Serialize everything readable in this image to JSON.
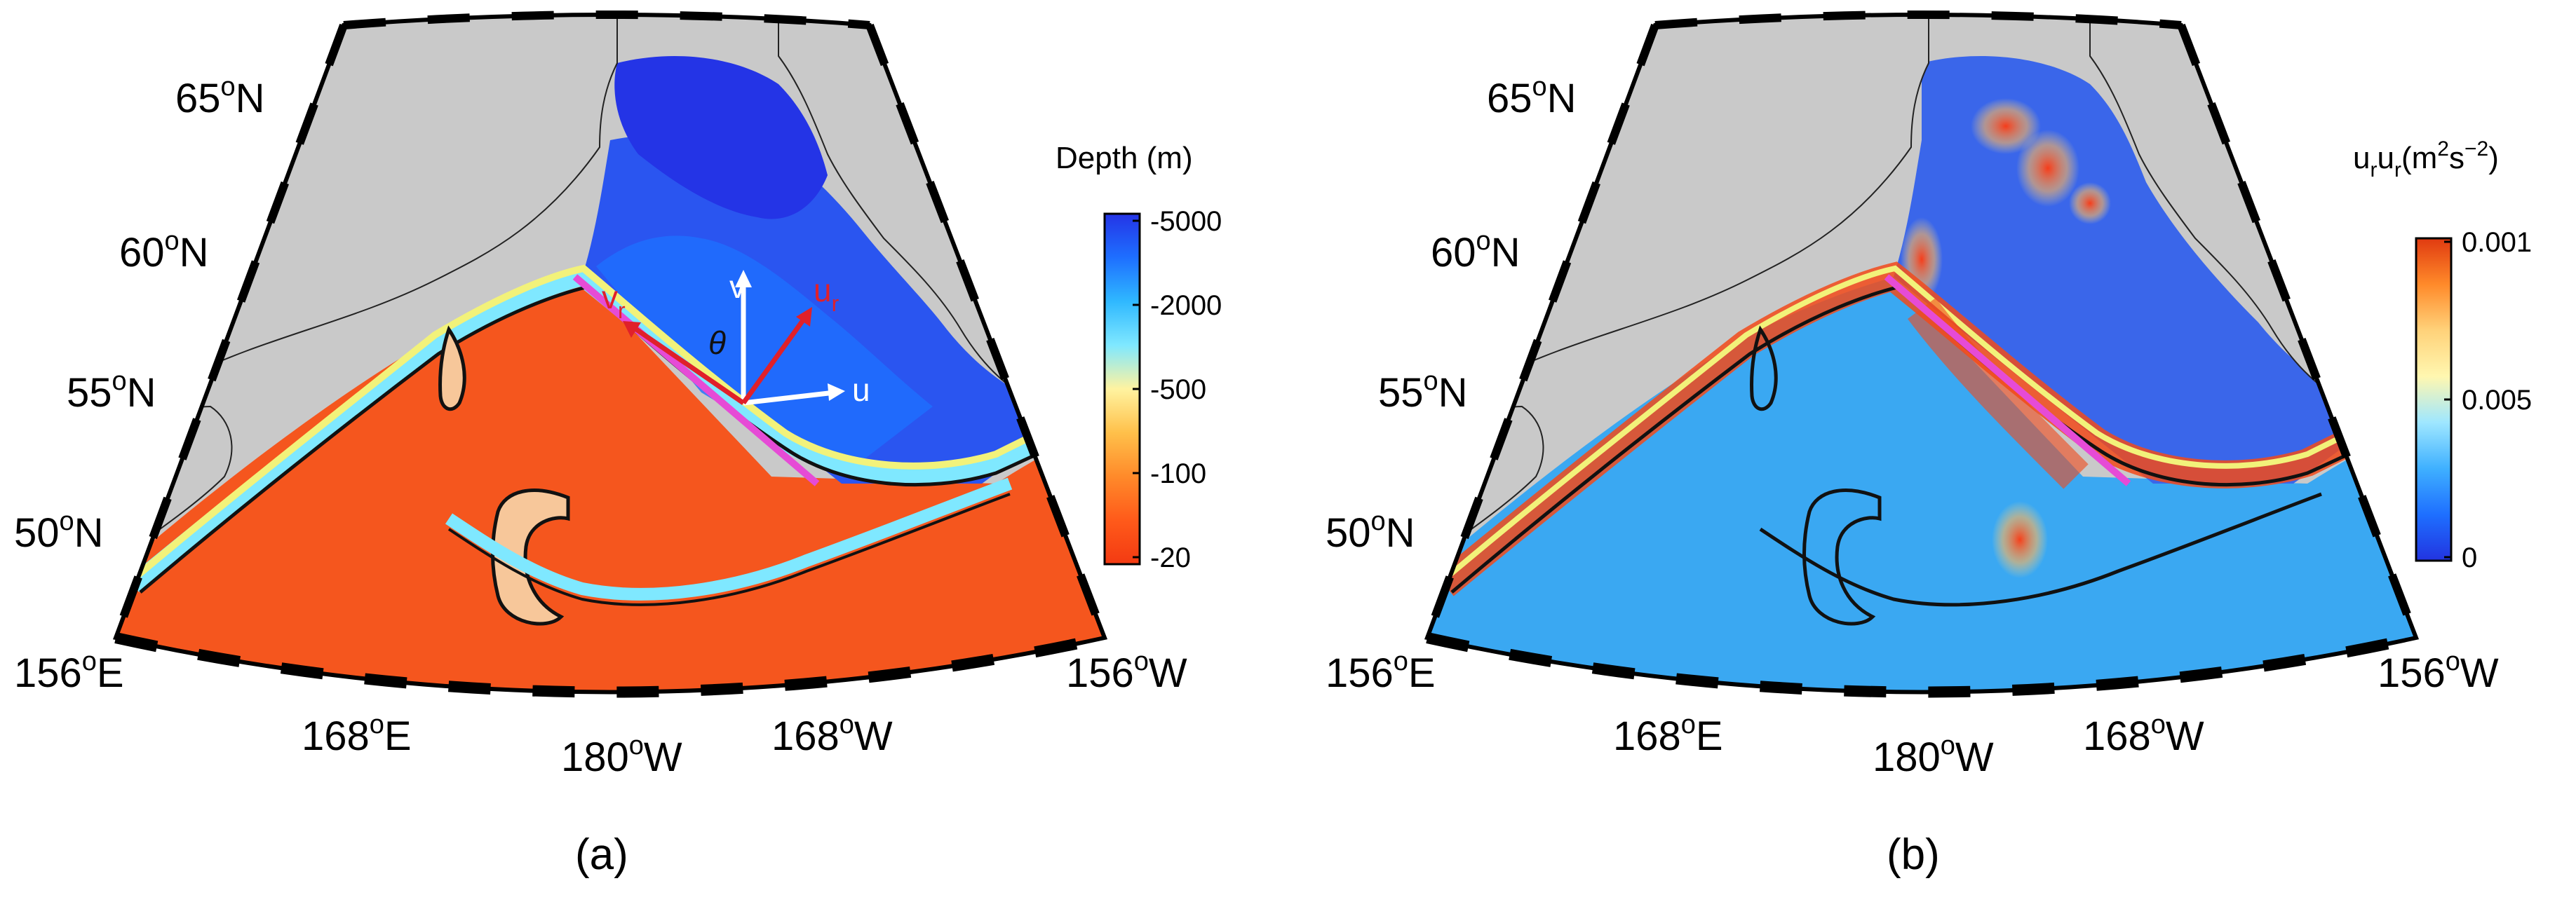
{
  "panels": [
    {
      "id": "a",
      "caption": "(a)",
      "lat_labels": [
        {
          "deg": "65",
          "sup": "o",
          "hem": "N"
        },
        {
          "deg": "60",
          "sup": "o",
          "hem": "N"
        },
        {
          "deg": "55",
          "sup": "o",
          "hem": "N"
        },
        {
          "deg": "50",
          "sup": "o",
          "hem": "N"
        }
      ],
      "lon_labels": [
        {
          "deg": "156",
          "sup": "o",
          "hem": "E"
        },
        {
          "deg": "168",
          "sup": "o",
          "hem": "E"
        },
        {
          "deg": "180",
          "sup": "o",
          "hem": "W"
        },
        {
          "deg": "168",
          "sup": "o",
          "hem": "W"
        },
        {
          "deg": "156",
          "sup": "o",
          "hem": "W"
        }
      ],
      "colorbar": {
        "title": "Depth (m)",
        "ticks": [
          "-5000",
          "-2000",
          "-500",
          "-100",
          "-20"
        ],
        "colors": [
          "#2434e6",
          "#1e6fff",
          "#2fb8ff",
          "#7fe8ff",
          "#fff3a0",
          "#ffc04a",
          "#ff8a2a",
          "#ff5a1a",
          "#f33a12"
        ]
      },
      "annotations": {
        "v": "v",
        "vr": "v",
        "vr_sub": "r",
        "theta": "θ",
        "ur": "u",
        "ur_sub": "r",
        "u": "u"
      },
      "palette": {
        "ocean": "#f5561e",
        "shelf": "#2a55f0",
        "land": "#c9c9c9",
        "section_line": "#e64bd6",
        "contour": "#111111",
        "yellow": "#f2f27a"
      }
    },
    {
      "id": "b",
      "caption": "(b)",
      "lat_labels": [
        {
          "deg": "65",
          "sup": "o",
          "hem": "N"
        },
        {
          "deg": "60",
          "sup": "o",
          "hem": "N"
        },
        {
          "deg": "55",
          "sup": "o",
          "hem": "N"
        },
        {
          "deg": "50",
          "sup": "o",
          "hem": "N"
        }
      ],
      "lon_labels": [
        {
          "deg": "156",
          "sup": "o",
          "hem": "E"
        },
        {
          "deg": "168",
          "sup": "o",
          "hem": "E"
        },
        {
          "deg": "180",
          "sup": "o",
          "hem": "W"
        },
        {
          "deg": "168",
          "sup": "o",
          "hem": "W"
        },
        {
          "deg": "156",
          "sup": "o",
          "hem": "W"
        }
      ],
      "colorbar": {
        "title_main": "u",
        "title_sub1": "r",
        "title_mid": "u",
        "title_sub2": "r",
        "title_units": "(m",
        "title_sup1": "2",
        "title_s": "s",
        "title_sup2": "−2",
        "title_close": ")",
        "ticks": [
          "0.001",
          "0.005",
          "0"
        ],
        "colors": [
          "#e03a10",
          "#ff8a2a",
          "#ffd27a",
          "#fff7b0",
          "#9fe7ff",
          "#3fb0ff",
          "#1e6fff",
          "#2234e0"
        ]
      },
      "palette": {
        "ocean": "#3aa8f2",
        "shelf": "#3a66ea",
        "land": "#c9c9c9",
        "section_line": "#e64bd6",
        "contour": "#111111",
        "hot": "#f24a1a"
      }
    }
  ]
}
